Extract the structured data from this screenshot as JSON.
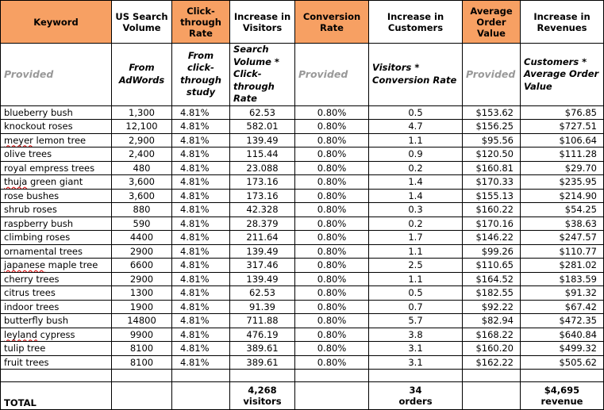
{
  "columns": [
    {
      "label": "Keyword",
      "highlight": true
    },
    {
      "label": "US Search Volume",
      "highlight": false
    },
    {
      "label": "Click-through Rate",
      "highlight": true
    },
    {
      "label": "Increase in Visitors",
      "highlight": false
    },
    {
      "label": "Conversion Rate",
      "highlight": true
    },
    {
      "label": "Increase in Customers",
      "highlight": false
    },
    {
      "label": "Average Order Value",
      "highlight": true
    },
    {
      "label": "Increase in Revenues",
      "highlight": false
    }
  ],
  "sources": [
    {
      "text": "Provided",
      "muted": true
    },
    {
      "text": "From AdWords",
      "muted": false
    },
    {
      "text": "From click-through study",
      "muted": false
    },
    {
      "text": "Search Volume * Click-through Rate",
      "muted": false
    },
    {
      "text": "Provided",
      "muted": true
    },
    {
      "text": "Visitors * Conversion Rate",
      "muted": false
    },
    {
      "text": "Provided",
      "muted": true
    },
    {
      "text": "Customers * Average Order Value",
      "muted": false
    }
  ],
  "rows": [
    {
      "keyword": "blueberry bush",
      "search_volume": "1,300",
      "ctr": "4.81%",
      "visitors": "62.53",
      "conversion": "0.80%",
      "customers": "0.5",
      "aov": "$153.62",
      "revenue": "$76.85"
    },
    {
      "keyword": "knockout roses",
      "search_volume": "12,100",
      "ctr": "4.81%",
      "visitors": "582.01",
      "conversion": "0.80%",
      "customers": "4.7",
      "aov": "$156.25",
      "revenue": "$727.51"
    },
    {
      "keyword": "meyer lemon tree",
      "search_volume": "2,900",
      "ctr": "4.81%",
      "visitors": "139.49",
      "conversion": "0.80%",
      "customers": "1.1",
      "aov": "$95.56",
      "revenue": "$106.64"
    },
    {
      "keyword": "olive trees",
      "search_volume": "2,400",
      "ctr": "4.81%",
      "visitors": "115.44",
      "conversion": "0.80%",
      "customers": "0.9",
      "aov": "$120.50",
      "revenue": "$111.28"
    },
    {
      "keyword": "royal empress trees",
      "search_volume": "480",
      "ctr": "4.81%",
      "visitors": "23.088",
      "conversion": "0.80%",
      "customers": "0.2",
      "aov": "$160.81",
      "revenue": "$29.70"
    },
    {
      "keyword": "thuja green giant",
      "search_volume": "3,600",
      "ctr": "4.81%",
      "visitors": "173.16",
      "conversion": "0.80%",
      "customers": "1.4",
      "aov": "$170.33",
      "revenue": "$235.95"
    },
    {
      "keyword": "rose bushes",
      "search_volume": "3,600",
      "ctr": "4.81%",
      "visitors": "173.16",
      "conversion": "0.80%",
      "customers": "1.4",
      "aov": "$155.13",
      "revenue": "$214.90"
    },
    {
      "keyword": "shrub roses",
      "search_volume": "880",
      "ctr": "4.81%",
      "visitors": "42.328",
      "conversion": "0.80%",
      "customers": "0.3",
      "aov": "$160.22",
      "revenue": "$54.25"
    },
    {
      "keyword": "raspberry bush",
      "search_volume": "590",
      "ctr": "4.81%",
      "visitors": "28.379",
      "conversion": "0.80%",
      "customers": "0.2",
      "aov": "$170.16",
      "revenue": "$38.63"
    },
    {
      "keyword": "climbing roses",
      "search_volume": "4400",
      "ctr": "4.81%",
      "visitors": "211.64",
      "conversion": "0.80%",
      "customers": "1.7",
      "aov": "$146.22",
      "revenue": "$247.57"
    },
    {
      "keyword": "ornamental trees",
      "search_volume": "2900",
      "ctr": "4.81%",
      "visitors": "139.49",
      "conversion": "0.80%",
      "customers": "1.1",
      "aov": "$99.26",
      "revenue": "$110.77"
    },
    {
      "keyword": "japanese maple tree",
      "search_volume": "6600",
      "ctr": "4.81%",
      "visitors": "317.46",
      "conversion": "0.80%",
      "customers": "2.5",
      "aov": "$110.65",
      "revenue": "$281.02"
    },
    {
      "keyword": "cherry trees",
      "search_volume": "2900",
      "ctr": "4.81%",
      "visitors": "139.49",
      "conversion": "0.80%",
      "customers": "1.1",
      "aov": "$164.52",
      "revenue": "$183.59"
    },
    {
      "keyword": "citrus trees",
      "search_volume": "1300",
      "ctr": "4.81%",
      "visitors": "62.53",
      "conversion": "0.80%",
      "customers": "0.5",
      "aov": "$182.55",
      "revenue": "$91.32"
    },
    {
      "keyword": "indoor trees",
      "search_volume": "1900",
      "ctr": "4.81%",
      "visitors": "91.39",
      "conversion": "0.80%",
      "customers": "0.7",
      "aov": "$92.22",
      "revenue": "$67.42"
    },
    {
      "keyword": "butterfly bush",
      "search_volume": "14800",
      "ctr": "4.81%",
      "visitors": "711.88",
      "conversion": "0.80%",
      "customers": "5.7",
      "aov": "$82.94",
      "revenue": "$472.35"
    },
    {
      "keyword": "leyland cypress",
      "search_volume": "9900",
      "ctr": "4.81%",
      "visitors": "476.19",
      "conversion": "0.80%",
      "customers": "3.8",
      "aov": "$168.22",
      "revenue": "$640.84"
    },
    {
      "keyword": "tulip tree",
      "search_volume": "8100",
      "ctr": "4.81%",
      "visitors": "389.61",
      "conversion": "0.80%",
      "customers": "3.1",
      "aov": "$160.20",
      "revenue": "$499.32"
    },
    {
      "keyword": "fruit trees",
      "search_volume": "8100",
      "ctr": "4.81%",
      "visitors": "389.61",
      "conversion": "0.80%",
      "customers": "3.1",
      "aov": "$162.22",
      "revenue": "$505.62"
    }
  ],
  "total": {
    "label": "TOTAL",
    "visitors": "4,268",
    "visitors_unit": "visitors",
    "customers": "34",
    "customers_unit": "orders",
    "revenue": "$4,695",
    "revenue_unit": "revenue"
  },
  "colors": {
    "header_highlight": "#f7a063",
    "muted_text": "#999999"
  }
}
